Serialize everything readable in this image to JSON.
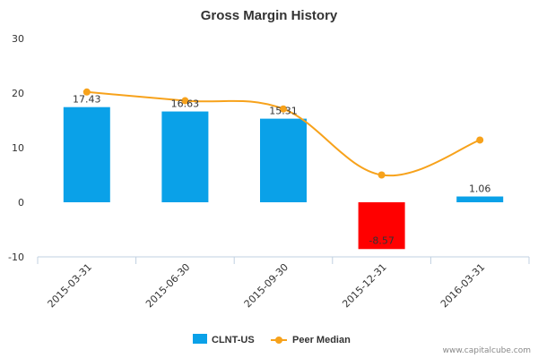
{
  "chart_data": {
    "type": "bar",
    "title": "Gross Margin History",
    "categories": [
      "2015-03-31",
      "2015-06-30",
      "2015-09-30",
      "2015-12-31",
      "2016-03-31"
    ],
    "yticks": [
      "30",
      "20",
      "10",
      "0",
      "-10"
    ],
    "ylim": [
      -10,
      30
    ],
    "series": [
      {
        "name": "CLNT-US",
        "kind": "bar",
        "values": [
          17.43,
          16.63,
          15.31,
          -8.57,
          1.06
        ],
        "labels": [
          "17.43",
          "16.63",
          "15.31",
          "-8.57",
          "1.06"
        ],
        "color": "#0aa1e8",
        "negative_color": "#ff0000"
      },
      {
        "name": "Peer Median",
        "kind": "line",
        "values": [
          20.2,
          18.6,
          17.1,
          5.0,
          11.4
        ],
        "color": "#f7a21b"
      }
    ],
    "legend": "bottom-center",
    "grid": false
  },
  "watermark": "www.capitalcube.com"
}
